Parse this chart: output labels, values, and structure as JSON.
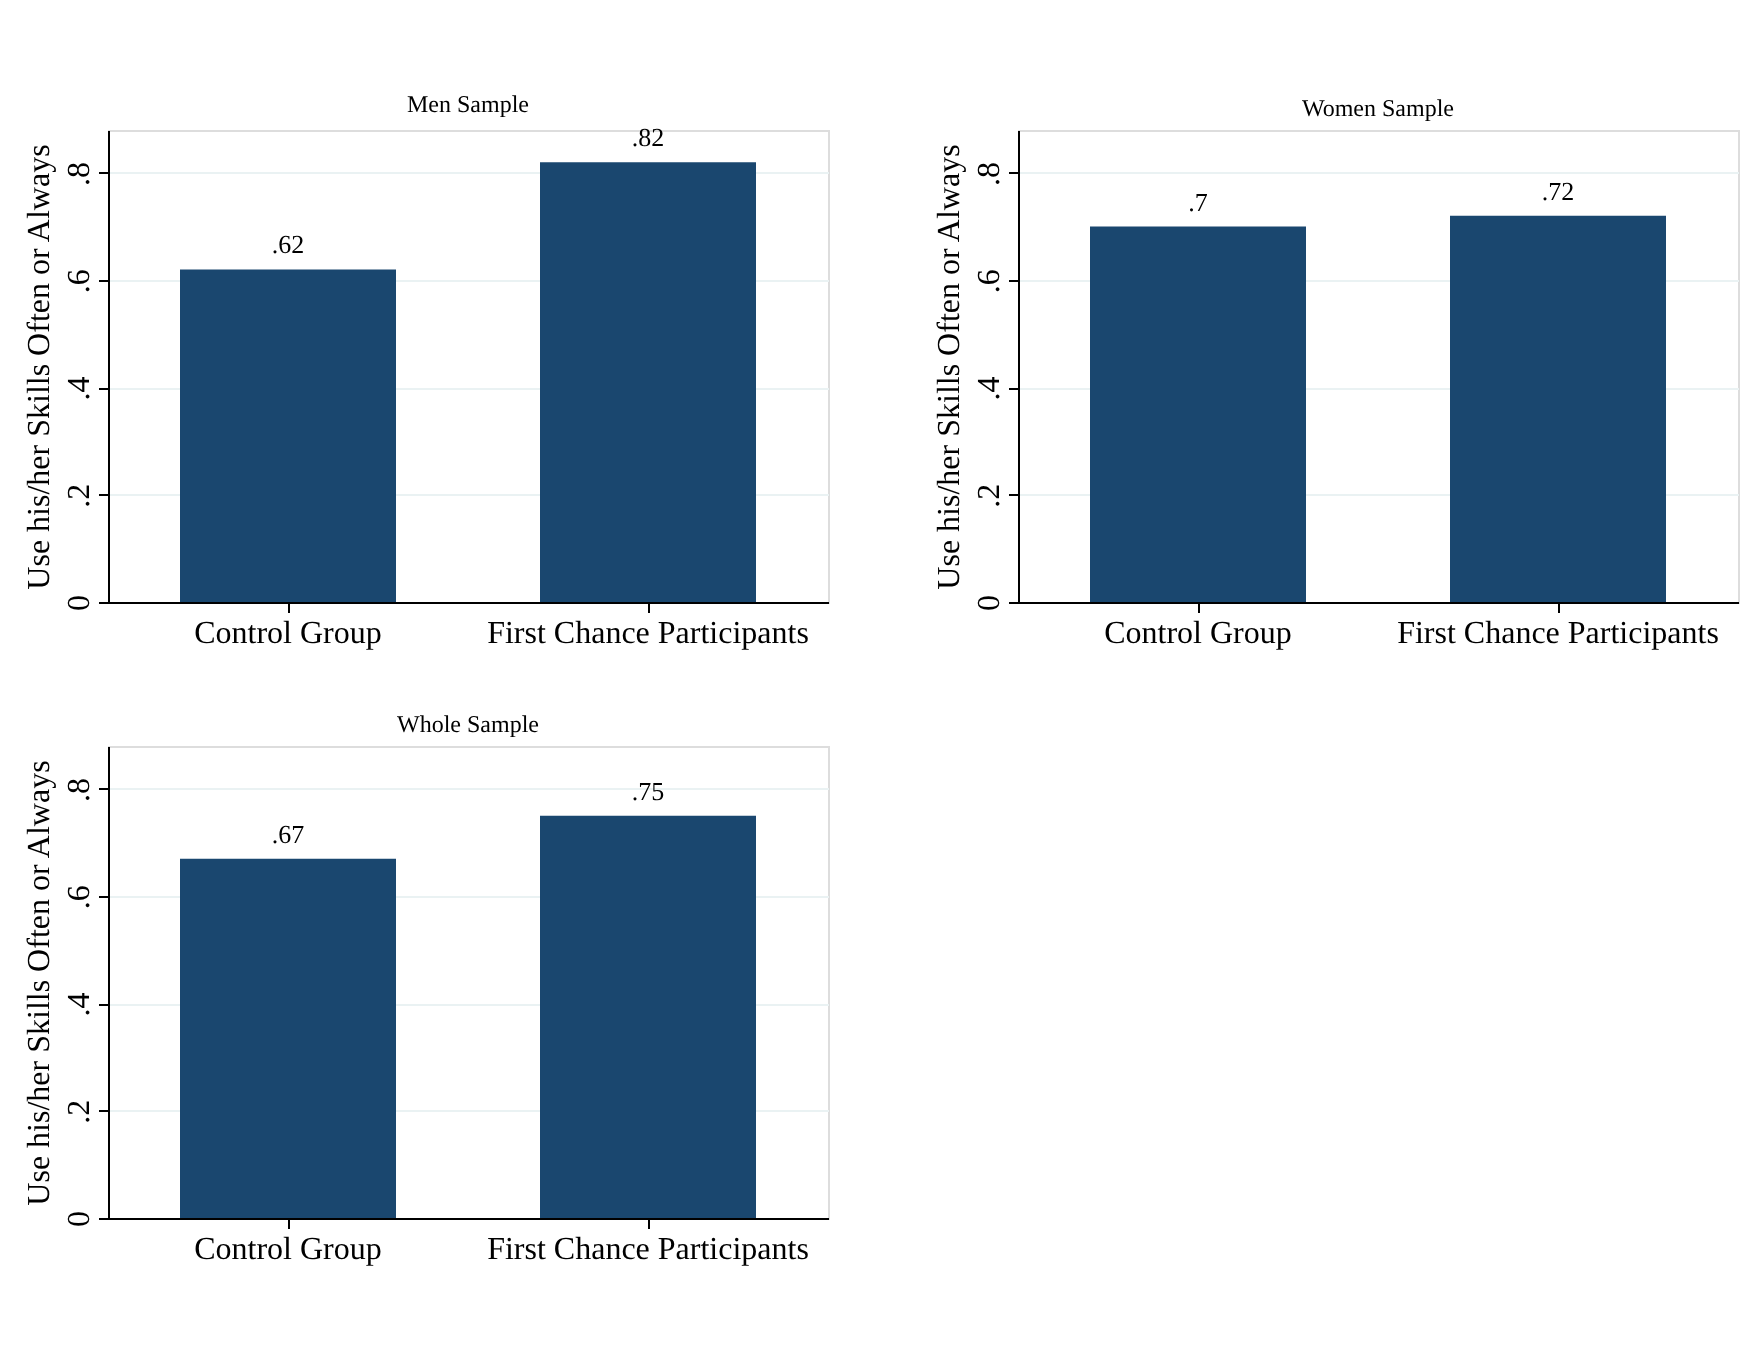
{
  "chart_data": [
    {
      "type": "bar",
      "title": "Men Sample",
      "ylabel": "Use his/her Skills Often or Always",
      "categories": [
        "Control Group",
        "First Chance Participants"
      ],
      "values": [
        0.62,
        0.82
      ],
      "value_labels": [
        ".62",
        ".82"
      ],
      "color": "#1a476f",
      "ylim": [
        0,
        0.88
      ],
      "yticks": [
        0,
        {
          "value": 0.2,
          "label": ".2"
        },
        {
          "value": 0.4,
          "label": ".4"
        },
        {
          "value": 0.6,
          "label": ".6"
        },
        {
          "value": 0.8,
          "label": ".8"
        }
      ],
      "grid": "y"
    },
    {
      "type": "bar",
      "title": "Women Sample",
      "ylabel": "Use his/her Skills Often or Always",
      "categories": [
        "Control Group",
        "First Chance Participants"
      ],
      "values": [
        0.7,
        0.72
      ],
      "value_labels": [
        ".7",
        ".72"
      ],
      "color": "#1a476f",
      "ylim": [
        0,
        0.88
      ],
      "yticks": [
        0,
        {
          "value": 0.2,
          "label": ".2"
        },
        {
          "value": 0.4,
          "label": ".4"
        },
        {
          "value": 0.6,
          "label": ".6"
        },
        {
          "value": 0.8,
          "label": ".8"
        }
      ],
      "grid": "y"
    },
    {
      "type": "bar",
      "title": "Whole Sample",
      "ylabel": "Use his/her Skills Often or Always",
      "categories": [
        "Control Group",
        "First Chance Participants"
      ],
      "values": [
        0.67,
        0.75
      ],
      "value_labels": [
        ".67",
        ".75"
      ],
      "color": "#1a476f",
      "ylim": [
        0,
        0.88
      ],
      "yticks": [
        0,
        {
          "value": 0.2,
          "label": ".2"
        },
        {
          "value": 0.4,
          "label": ".4"
        },
        {
          "value": 0.6,
          "label": ".6"
        },
        {
          "value": 0.8,
          "label": ".8"
        }
      ],
      "grid": "y"
    }
  ]
}
